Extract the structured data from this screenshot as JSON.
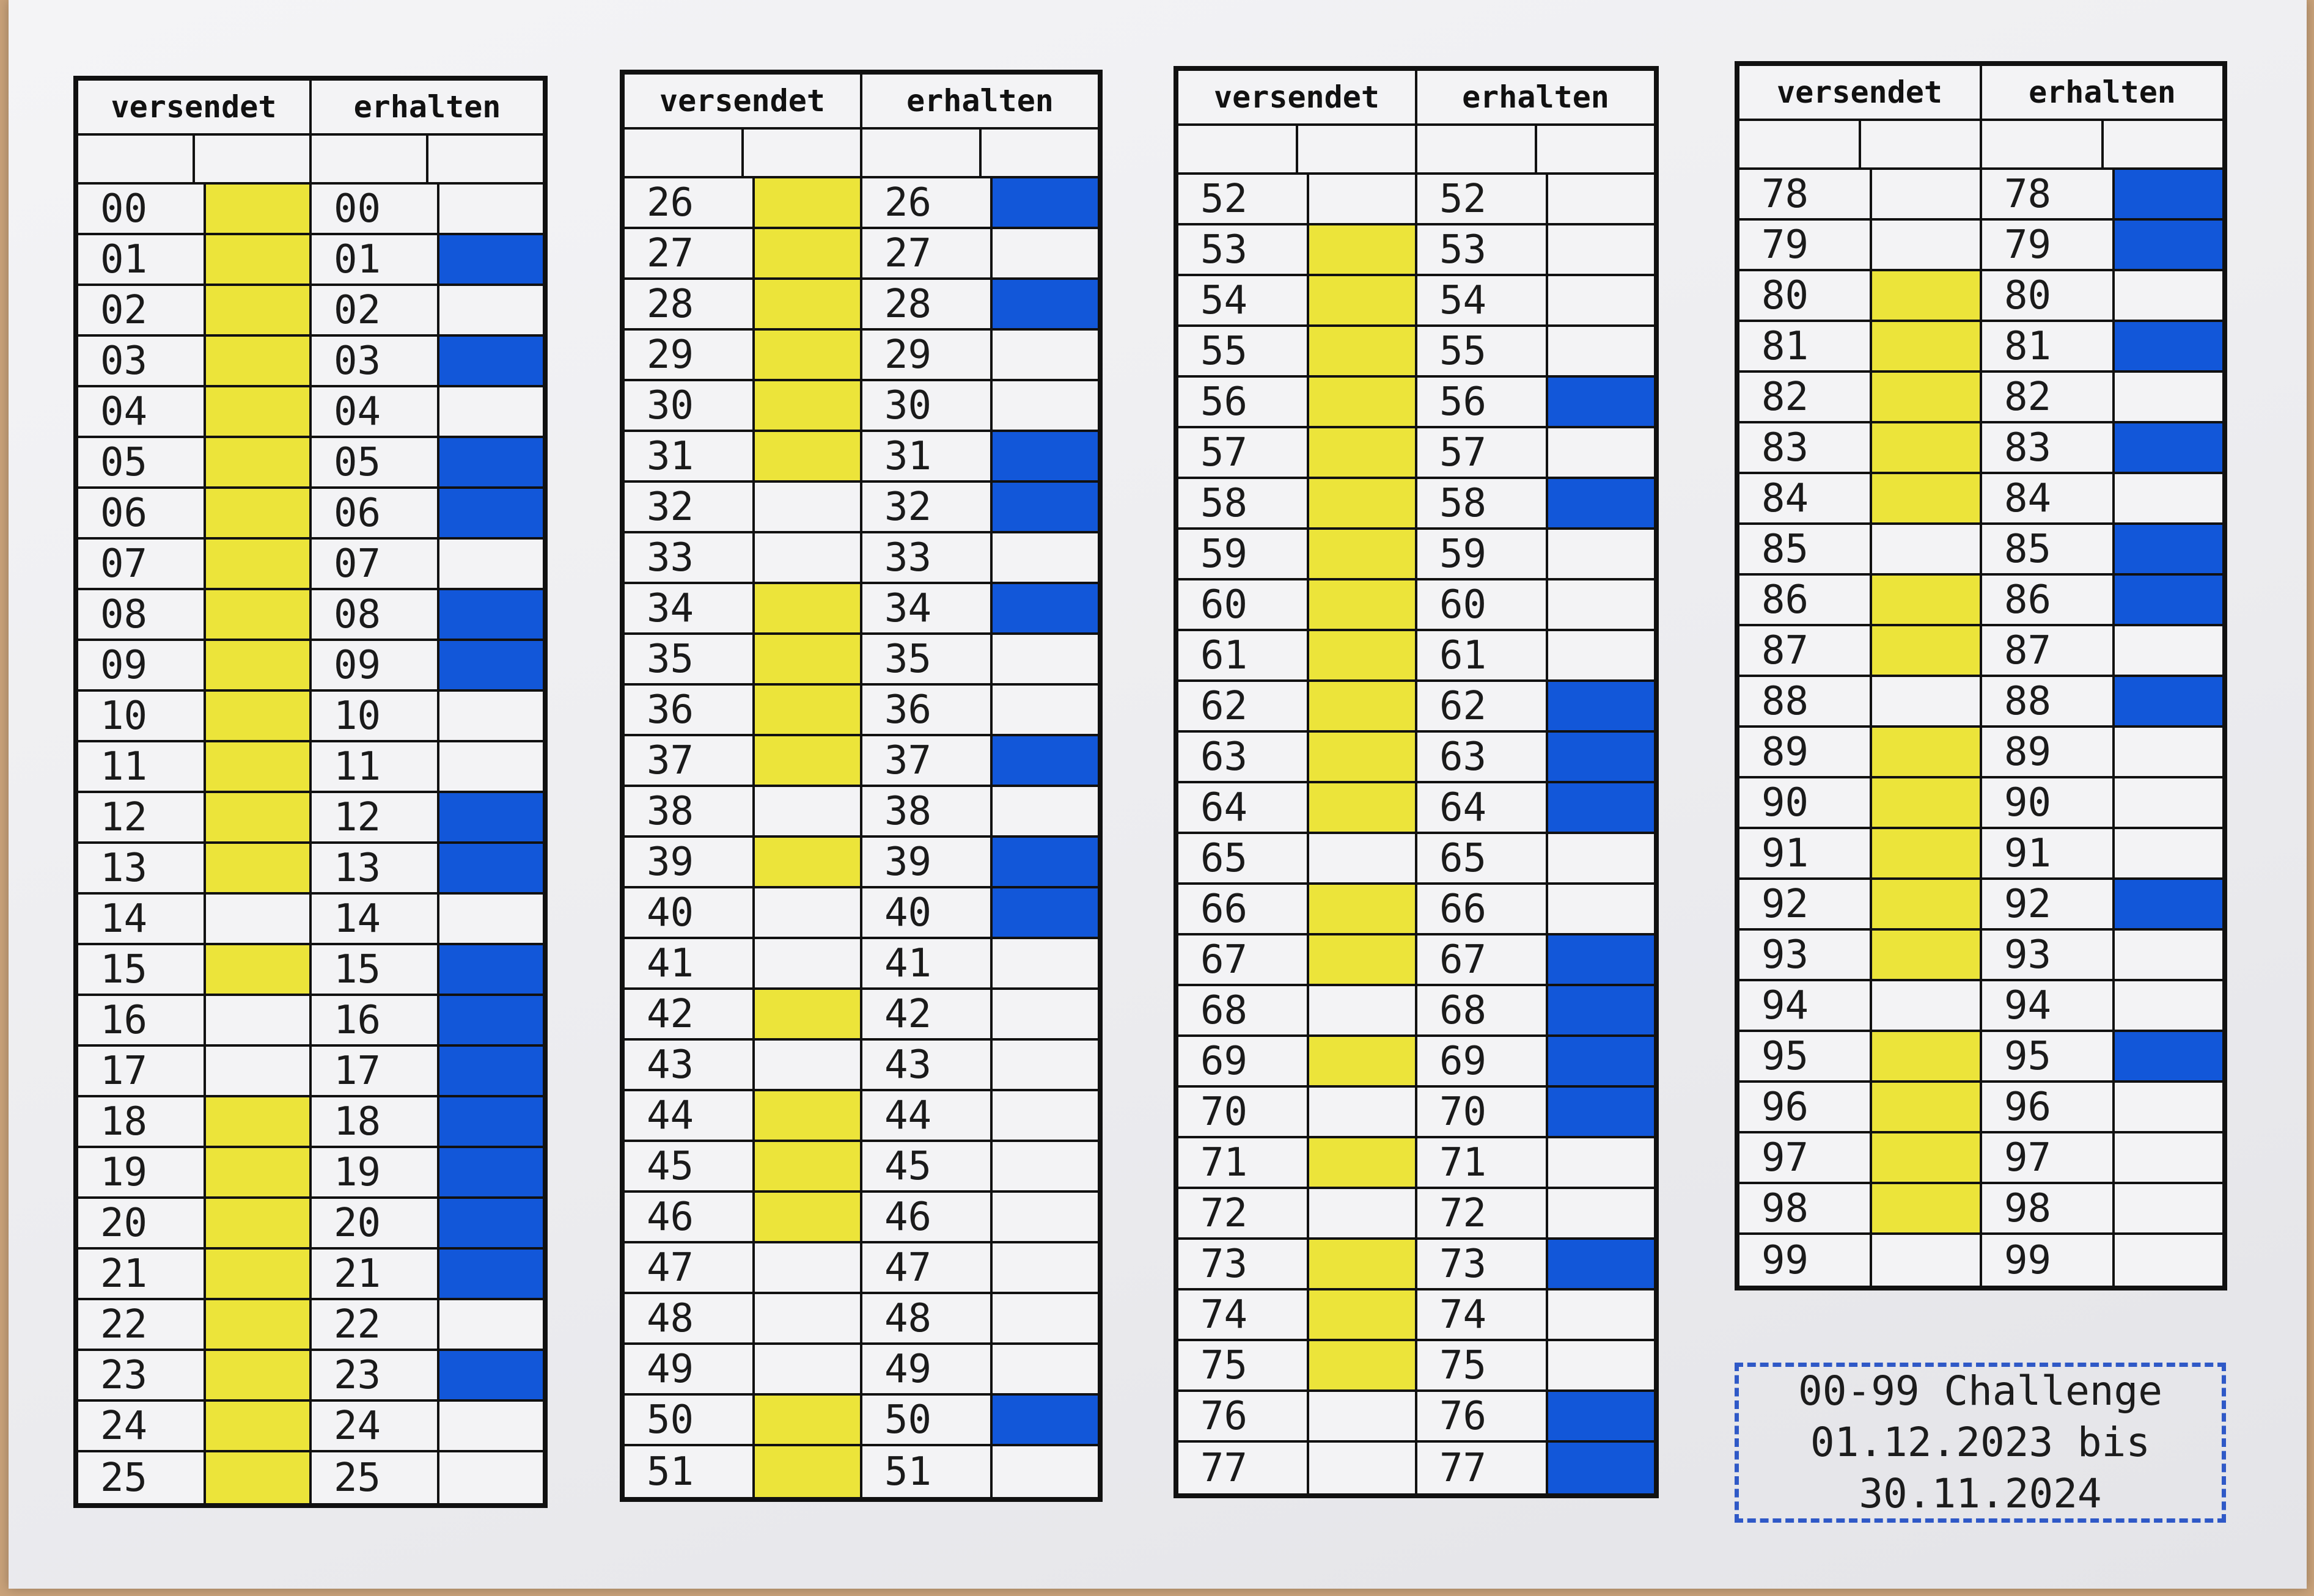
{
  "header": {
    "sent_label": "versendet",
    "received_label": "erhalten"
  },
  "colors": {
    "sent": "#ece43a",
    "received": "#1257d9",
    "empty": "#f3f3f5"
  },
  "tables": [
    {
      "rows": [
        {
          "num": "00",
          "sent": true,
          "received": false
        },
        {
          "num": "01",
          "sent": true,
          "received": true
        },
        {
          "num": "02",
          "sent": true,
          "received": false
        },
        {
          "num": "03",
          "sent": true,
          "received": true
        },
        {
          "num": "04",
          "sent": true,
          "received": false
        },
        {
          "num": "05",
          "sent": true,
          "received": true
        },
        {
          "num": "06",
          "sent": true,
          "received": true
        },
        {
          "num": "07",
          "sent": true,
          "received": false
        },
        {
          "num": "08",
          "sent": true,
          "received": true
        },
        {
          "num": "09",
          "sent": true,
          "received": true
        },
        {
          "num": "10",
          "sent": true,
          "received": false
        },
        {
          "num": "11",
          "sent": true,
          "received": false
        },
        {
          "num": "12",
          "sent": true,
          "received": true
        },
        {
          "num": "13",
          "sent": true,
          "received": true
        },
        {
          "num": "14",
          "sent": false,
          "received": false
        },
        {
          "num": "15",
          "sent": true,
          "received": true
        },
        {
          "num": "16",
          "sent": false,
          "received": true
        },
        {
          "num": "17",
          "sent": false,
          "received": true
        },
        {
          "num": "18",
          "sent": true,
          "received": true
        },
        {
          "num": "19",
          "sent": true,
          "received": true
        },
        {
          "num": "20",
          "sent": true,
          "received": true
        },
        {
          "num": "21",
          "sent": true,
          "received": true
        },
        {
          "num": "22",
          "sent": true,
          "received": false
        },
        {
          "num": "23",
          "sent": true,
          "received": true
        },
        {
          "num": "24",
          "sent": true,
          "received": false
        },
        {
          "num": "25",
          "sent": true,
          "received": false
        }
      ]
    },
    {
      "rows": [
        {
          "num": "26",
          "sent": true,
          "received": true
        },
        {
          "num": "27",
          "sent": true,
          "received": false
        },
        {
          "num": "28",
          "sent": true,
          "received": true
        },
        {
          "num": "29",
          "sent": true,
          "received": false
        },
        {
          "num": "30",
          "sent": true,
          "received": false
        },
        {
          "num": "31",
          "sent": true,
          "received": true
        },
        {
          "num": "32",
          "sent": false,
          "received": true
        },
        {
          "num": "33",
          "sent": false,
          "received": false
        },
        {
          "num": "34",
          "sent": true,
          "received": true
        },
        {
          "num": "35",
          "sent": true,
          "received": false
        },
        {
          "num": "36",
          "sent": true,
          "received": false
        },
        {
          "num": "37",
          "sent": true,
          "received": true
        },
        {
          "num": "38",
          "sent": false,
          "received": false
        },
        {
          "num": "39",
          "sent": true,
          "received": true
        },
        {
          "num": "40",
          "sent": false,
          "received": true
        },
        {
          "num": "41",
          "sent": false,
          "received": false
        },
        {
          "num": "42",
          "sent": true,
          "received": false
        },
        {
          "num": "43",
          "sent": false,
          "received": false
        },
        {
          "num": "44",
          "sent": true,
          "received": false
        },
        {
          "num": "45",
          "sent": true,
          "received": false
        },
        {
          "num": "46",
          "sent": true,
          "received": false
        },
        {
          "num": "47",
          "sent": false,
          "received": false
        },
        {
          "num": "48",
          "sent": false,
          "received": false
        },
        {
          "num": "49",
          "sent": false,
          "received": false
        },
        {
          "num": "50",
          "sent": true,
          "received": true
        },
        {
          "num": "51",
          "sent": true,
          "received": false
        }
      ]
    },
    {
      "rows": [
        {
          "num": "52",
          "sent": false,
          "received": false
        },
        {
          "num": "53",
          "sent": true,
          "received": false
        },
        {
          "num": "54",
          "sent": true,
          "received": false
        },
        {
          "num": "55",
          "sent": true,
          "received": false
        },
        {
          "num": "56",
          "sent": true,
          "received": true
        },
        {
          "num": "57",
          "sent": true,
          "received": false
        },
        {
          "num": "58",
          "sent": true,
          "received": true
        },
        {
          "num": "59",
          "sent": true,
          "received": false
        },
        {
          "num": "60",
          "sent": true,
          "received": false
        },
        {
          "num": "61",
          "sent": true,
          "received": false
        },
        {
          "num": "62",
          "sent": true,
          "received": true
        },
        {
          "num": "63",
          "sent": true,
          "received": true
        },
        {
          "num": "64",
          "sent": true,
          "received": true
        },
        {
          "num": "65",
          "sent": false,
          "received": false
        },
        {
          "num": "66",
          "sent": true,
          "received": false
        },
        {
          "num": "67",
          "sent": true,
          "received": true
        },
        {
          "num": "68",
          "sent": false,
          "received": true
        },
        {
          "num": "69",
          "sent": true,
          "received": true
        },
        {
          "num": "70",
          "sent": false,
          "received": true
        },
        {
          "num": "71",
          "sent": true,
          "received": false
        },
        {
          "num": "72",
          "sent": false,
          "received": false
        },
        {
          "num": "73",
          "sent": true,
          "received": true
        },
        {
          "num": "74",
          "sent": true,
          "received": false
        },
        {
          "num": "75",
          "sent": true,
          "received": false
        },
        {
          "num": "76",
          "sent": false,
          "received": true
        },
        {
          "num": "77",
          "sent": false,
          "received": true
        }
      ]
    },
    {
      "rows": [
        {
          "num": "78",
          "sent": false,
          "received": true
        },
        {
          "num": "79",
          "sent": false,
          "received": true
        },
        {
          "num": "80",
          "sent": true,
          "received": false
        },
        {
          "num": "81",
          "sent": true,
          "received": true
        },
        {
          "num": "82",
          "sent": true,
          "received": false
        },
        {
          "num": "83",
          "sent": true,
          "received": true
        },
        {
          "num": "84",
          "sent": true,
          "received": false
        },
        {
          "num": "85",
          "sent": false,
          "received": true
        },
        {
          "num": "86",
          "sent": true,
          "received": true
        },
        {
          "num": "87",
          "sent": true,
          "received": false
        },
        {
          "num": "88",
          "sent": false,
          "received": true
        },
        {
          "num": "89",
          "sent": true,
          "received": false
        },
        {
          "num": "90",
          "sent": true,
          "received": false
        },
        {
          "num": "91",
          "sent": true,
          "received": false
        },
        {
          "num": "92",
          "sent": true,
          "received": true
        },
        {
          "num": "93",
          "sent": true,
          "received": false
        },
        {
          "num": "94",
          "sent": false,
          "received": false
        },
        {
          "num": "95",
          "sent": true,
          "received": true
        },
        {
          "num": "96",
          "sent": true,
          "received": false
        },
        {
          "num": "97",
          "sent": true,
          "received": false
        },
        {
          "num": "98",
          "sent": true,
          "received": false
        },
        {
          "num": "99",
          "sent": false,
          "received": false
        }
      ]
    }
  ],
  "challenge": {
    "line1": "00-99 Challenge",
    "line2": "01.12.2023 bis",
    "line3": "30.11.2024"
  }
}
